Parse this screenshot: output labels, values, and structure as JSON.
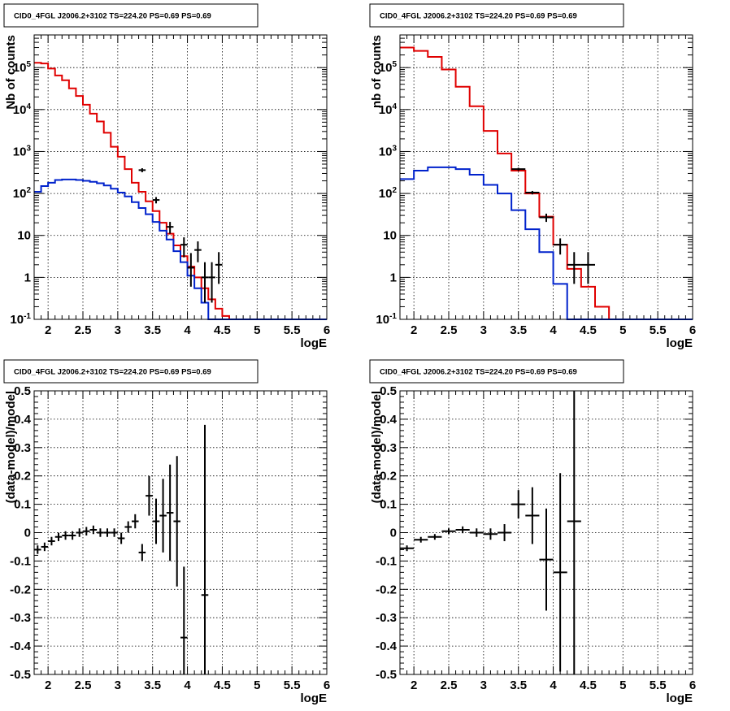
{
  "colors": {
    "data": "#000000",
    "total_model": "#e00000",
    "source_model": "#0022cc"
  },
  "chart_data": [
    {
      "type": "line",
      "title": "CID0_4FGL J2006.2+3102 TS=224.20 PS=0.69 PS=0.69",
      "xlabel": "logE",
      "ylabel": "Nb of counts",
      "xlim": [
        1.8,
        6.0
      ],
      "ylim": [
        0.1,
        600000
      ],
      "yscale": "log",
      "grid": true,
      "x_ticks": [
        "2",
        "2.5",
        "3",
        "3.5",
        "4",
        "4.5",
        "5",
        "5.5",
        "6"
      ],
      "y_ticks": [
        "10^-1",
        "1",
        "10",
        "10^2",
        "10^3",
        "10^4",
        "10^5"
      ],
      "bin_edges": [
        1.8,
        1.9,
        2.0,
        2.1,
        2.2,
        2.3,
        2.4,
        2.5,
        2.6,
        2.7,
        2.8,
        2.9,
        3.0,
        3.1,
        3.2,
        3.3,
        3.4,
        3.5,
        3.6,
        3.7,
        3.8,
        3.9,
        4.0,
        4.1,
        4.2,
        4.3,
        4.4,
        4.5,
        4.6,
        4.7,
        4.8,
        4.9,
        5.0,
        5.1,
        5.2,
        5.3,
        5.4,
        5.5,
        5.6,
        5.7,
        5.8,
        5.9,
        6.0
      ],
      "series": [
        {
          "role": "total_model",
          "values": [
            130000,
            125000,
            95000,
            65000,
            50000,
            32000,
            21000,
            13000,
            8000,
            5200,
            2800,
            1300,
            750,
            380,
            180,
            110,
            65,
            38,
            20,
            11,
            5.8,
            3.2,
            1.8,
            1.0,
            0.55,
            0.3,
            0.18,
            0.12,
            0.1,
            0.1,
            0.1,
            0.1,
            0.1,
            0.1,
            0.1,
            0.1,
            0.1,
            0.1,
            0.1,
            0.1,
            0.1,
            0.1
          ]
        },
        {
          "role": "source_model",
          "values": [
            110,
            150,
            180,
            210,
            215,
            215,
            210,
            200,
            190,
            175,
            155,
            130,
            105,
            85,
            62,
            45,
            32,
            21,
            13,
            8,
            4.2,
            2.3,
            1.1,
            0.55,
            0.25,
            0.1,
            0.1,
            0.1,
            0.1,
            0.1,
            0.1,
            0.1,
            0.1,
            0.1,
            0.1,
            0.1,
            0.1,
            0.1,
            0.1,
            0.1,
            0.1,
            0.1
          ]
        }
      ],
      "data_points": [
        {
          "x": 3.35,
          "y": 360,
          "lo": 320,
          "hi": 400,
          "xerr": 0.05
        },
        {
          "x": 3.55,
          "y": 70,
          "lo": 58,
          "hi": 82,
          "xerr": 0.05
        },
        {
          "x": 3.75,
          "y": 16,
          "lo": 11,
          "hi": 21,
          "xerr": 0.05
        },
        {
          "x": 3.95,
          "y": 6,
          "lo": 3,
          "hi": 9,
          "xerr": 0.05
        },
        {
          "x": 4.05,
          "y": 1.7,
          "lo": 0.6,
          "hi": 3.8,
          "xerr": 0.05
        },
        {
          "x": 4.15,
          "y": 4.5,
          "lo": 2.3,
          "hi": 7.2,
          "xerr": 0.05
        },
        {
          "x": 4.25,
          "y": 1.0,
          "lo": 0.25,
          "hi": 2.3,
          "xerr": 0.05
        },
        {
          "x": 4.35,
          "y": 1.0,
          "lo": 0.25,
          "hi": 2.3,
          "xerr": 0.05
        },
        {
          "x": 4.45,
          "y": 2.0,
          "lo": 0.7,
          "hi": 4.0,
          "xerr": 0.05
        }
      ]
    },
    {
      "type": "line",
      "title": "CID0_4FGL J2006.2+3102 TS=224.20 PS=0.69 PS=0.69",
      "xlabel": "logE",
      "ylabel": "nb of counts",
      "xlim": [
        1.8,
        6.0
      ],
      "ylim": [
        0.1,
        600000
      ],
      "yscale": "log",
      "grid": true,
      "x_ticks": [
        "2",
        "2.5",
        "3",
        "3.5",
        "4",
        "4.5",
        "5",
        "5.5",
        "6"
      ],
      "y_ticks": [
        "10^-1",
        "1",
        "10",
        "10^2",
        "10^3",
        "10^4",
        "10^5"
      ],
      "bin_edges": [
        1.8,
        2.0,
        2.2,
        2.4,
        2.6,
        2.8,
        3.0,
        3.2,
        3.4,
        3.6,
        3.8,
        4.0,
        4.2,
        4.4,
        4.6,
        4.8,
        5.0,
        5.2,
        5.4,
        5.6,
        5.8,
        6.0
      ],
      "series": [
        {
          "role": "total_model",
          "values": [
            300000,
            250000,
            180000,
            90000,
            35000,
            12000,
            3100,
            900,
            350,
            100,
            28,
            6,
            1.6,
            0.6,
            0.2,
            0.1,
            0.1,
            0.1,
            0.1,
            0.1,
            0.1
          ]
        },
        {
          "role": "source_model",
          "values": [
            220,
            350,
            420,
            420,
            380,
            280,
            160,
            100,
            40,
            14,
            4,
            0.7,
            0.1,
            0.1,
            0.1,
            0.1,
            0.1,
            0.1,
            0.1,
            0.1,
            0.1
          ]
        }
      ],
      "data_points": [
        {
          "x": 3.5,
          "y": 380,
          "lo": 350,
          "hi": 410,
          "xerr": 0.1
        },
        {
          "x": 3.7,
          "y": 105,
          "lo": 95,
          "hi": 115,
          "xerr": 0.1
        },
        {
          "x": 3.9,
          "y": 27,
          "lo": 21,
          "hi": 33,
          "xerr": 0.1
        },
        {
          "x": 4.1,
          "y": 6,
          "lo": 3.5,
          "hi": 8.5,
          "xerr": 0.1
        },
        {
          "x": 4.3,
          "y": 2,
          "lo": 0.7,
          "hi": 4,
          "xerr": 0.1
        },
        {
          "x": 4.5,
          "y": 2,
          "lo": 0.7,
          "hi": 4,
          "xerr": 0.1
        }
      ]
    },
    {
      "type": "scatter",
      "title": "CID0_4FGL J2006.2+3102 TS=224.20 PS=0.69 PS=0.69",
      "xlabel": "logE",
      "ylabel": "(data-model)/model",
      "xlim": [
        1.8,
        6.0
      ],
      "ylim": [
        -0.5,
        0.5
      ],
      "grid": true,
      "x_ticks": [
        "2",
        "2.5",
        "3",
        "3.5",
        "4",
        "4.5",
        "5",
        "5.5",
        "6"
      ],
      "y_ticks": [
        "-0.5",
        "-0.4",
        "-0.3",
        "-0.2",
        "-0.1",
        "0",
        "0.1",
        "0.2",
        "0.3",
        "0.4",
        "0.5"
      ],
      "points": [
        {
          "x": 1.85,
          "y": -0.06,
          "err": 0.015
        },
        {
          "x": 1.95,
          "y": -0.05,
          "err": 0.015
        },
        {
          "x": 2.05,
          "y": -0.03,
          "err": 0.015
        },
        {
          "x": 2.15,
          "y": -0.015,
          "err": 0.015
        },
        {
          "x": 2.25,
          "y": -0.01,
          "err": 0.015
        },
        {
          "x": 2.35,
          "y": -0.01,
          "err": 0.015
        },
        {
          "x": 2.45,
          "y": 0.0,
          "err": 0.015
        },
        {
          "x": 2.55,
          "y": 0.005,
          "err": 0.015
        },
        {
          "x": 2.65,
          "y": 0.01,
          "err": 0.015
        },
        {
          "x": 2.75,
          "y": 0.0,
          "err": 0.015
        },
        {
          "x": 2.85,
          "y": 0.0,
          "err": 0.015
        },
        {
          "x": 2.95,
          "y": 0.0,
          "err": 0.015
        },
        {
          "x": 3.05,
          "y": -0.02,
          "err": 0.02
        },
        {
          "x": 3.15,
          "y": 0.02,
          "err": 0.02
        },
        {
          "x": 3.25,
          "y": 0.04,
          "err": 0.025
        },
        {
          "x": 3.35,
          "y": -0.07,
          "err": 0.03
        },
        {
          "x": 3.45,
          "y": 0.13,
          "err": 0.07
        },
        {
          "x": 3.55,
          "y": 0.04,
          "err": 0.08
        },
        {
          "x": 3.65,
          "y": 0.06,
          "err": 0.13
        },
        {
          "x": 3.75,
          "y": 0.07,
          "err": 0.17
        },
        {
          "x": 3.85,
          "y": 0.04,
          "err": 0.23
        },
        {
          "x": 3.95,
          "y": -0.37,
          "err": 0.25
        },
        {
          "x": 4.25,
          "y": -0.22,
          "err": 0.6
        }
      ]
    },
    {
      "type": "scatter",
      "title": "CID0_4FGL J2006.2+3102 TS=224.20 PS=0.69 PS=0.69",
      "xlabel": "logE",
      "ylabel": "(data-model)/model",
      "xlim": [
        1.8,
        6.0
      ],
      "ylim": [
        -0.5,
        0.5
      ],
      "grid": true,
      "x_ticks": [
        "2",
        "2.5",
        "3",
        "3.5",
        "4",
        "4.5",
        "5",
        "5.5",
        "6"
      ],
      "y_ticks": [
        "-0.5",
        "-0.4",
        "-0.3",
        "-0.2",
        "-0.1",
        "0",
        "0.1",
        "0.2",
        "0.3",
        "0.4",
        "0.5"
      ],
      "points": [
        {
          "x": 1.9,
          "y": -0.055,
          "err": 0.01
        },
        {
          "x": 2.1,
          "y": -0.025,
          "err": 0.01
        },
        {
          "x": 2.3,
          "y": -0.015,
          "err": 0.01
        },
        {
          "x": 2.5,
          "y": 0.005,
          "err": 0.01
        },
        {
          "x": 2.7,
          "y": 0.01,
          "err": 0.012
        },
        {
          "x": 2.9,
          "y": 0.0,
          "err": 0.015
        },
        {
          "x": 3.1,
          "y": -0.005,
          "err": 0.02
        },
        {
          "x": 3.3,
          "y": 0.0,
          "err": 0.03
        },
        {
          "x": 3.5,
          "y": 0.1,
          "err": 0.05
        },
        {
          "x": 3.7,
          "y": 0.06,
          "err": 0.1
        },
        {
          "x": 3.9,
          "y": -0.095,
          "err": 0.18
        },
        {
          "x": 4.1,
          "y": -0.14,
          "err": 0.35
        },
        {
          "x": 4.3,
          "y": 0.04,
          "err": 0.6
        }
      ]
    }
  ]
}
